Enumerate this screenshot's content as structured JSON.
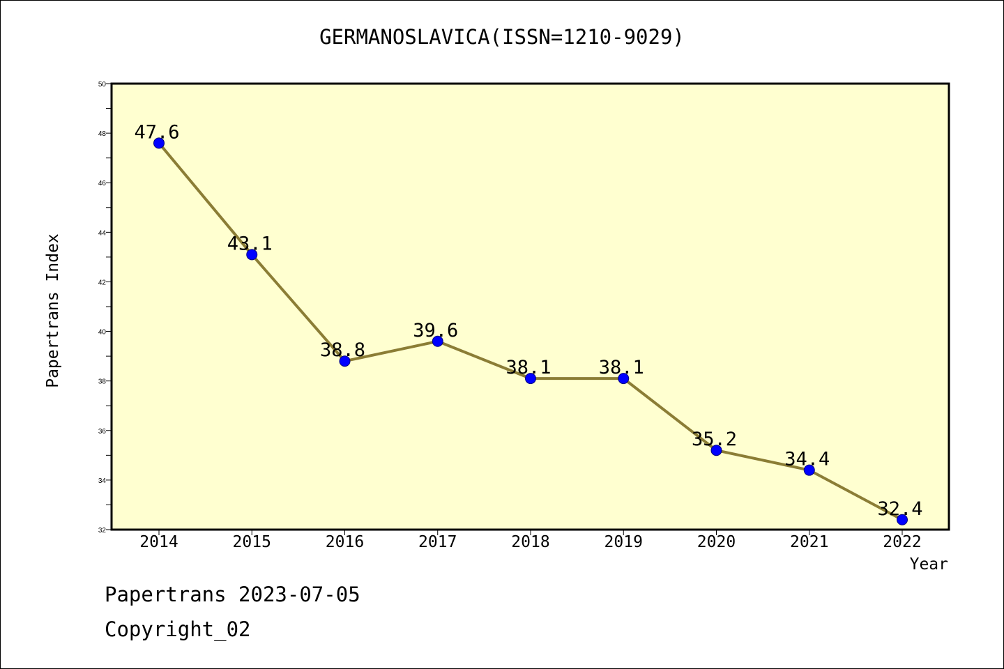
{
  "chart_data": {
    "type": "line",
    "title": "GERMANOSLAVICA(ISSN=1210-9029)",
    "xlabel": "Year",
    "ylabel": "Papertrans Index",
    "categories": [
      "2014",
      "2015",
      "2016",
      "2017",
      "2018",
      "2019",
      "2020",
      "2021",
      "2022"
    ],
    "series": [
      {
        "values": [
          47.6,
          43.1,
          38.8,
          39.6,
          38.1,
          38.1,
          35.2,
          34.4,
          32.4
        ],
        "data_labels": [
          "47.6",
          "43.1",
          "38.8",
          "39.6",
          "38.1",
          "38.1",
          "35.2",
          "34.4",
          "32.4"
        ]
      }
    ],
    "ylim": [
      32,
      50
    ],
    "yticks": [
      32,
      34,
      36,
      38,
      40,
      42,
      44,
      46,
      48,
      50
    ],
    "grid": false,
    "legend": "none"
  },
  "footer": {
    "date_line": "Papertrans 2023-07-05",
    "copyright": "Copyright_02"
  },
  "colors": {
    "plot_background": "#ffffd0",
    "line": "#8b7d35",
    "marker_fill": "#0000ff",
    "marker_edge": "#000080"
  }
}
